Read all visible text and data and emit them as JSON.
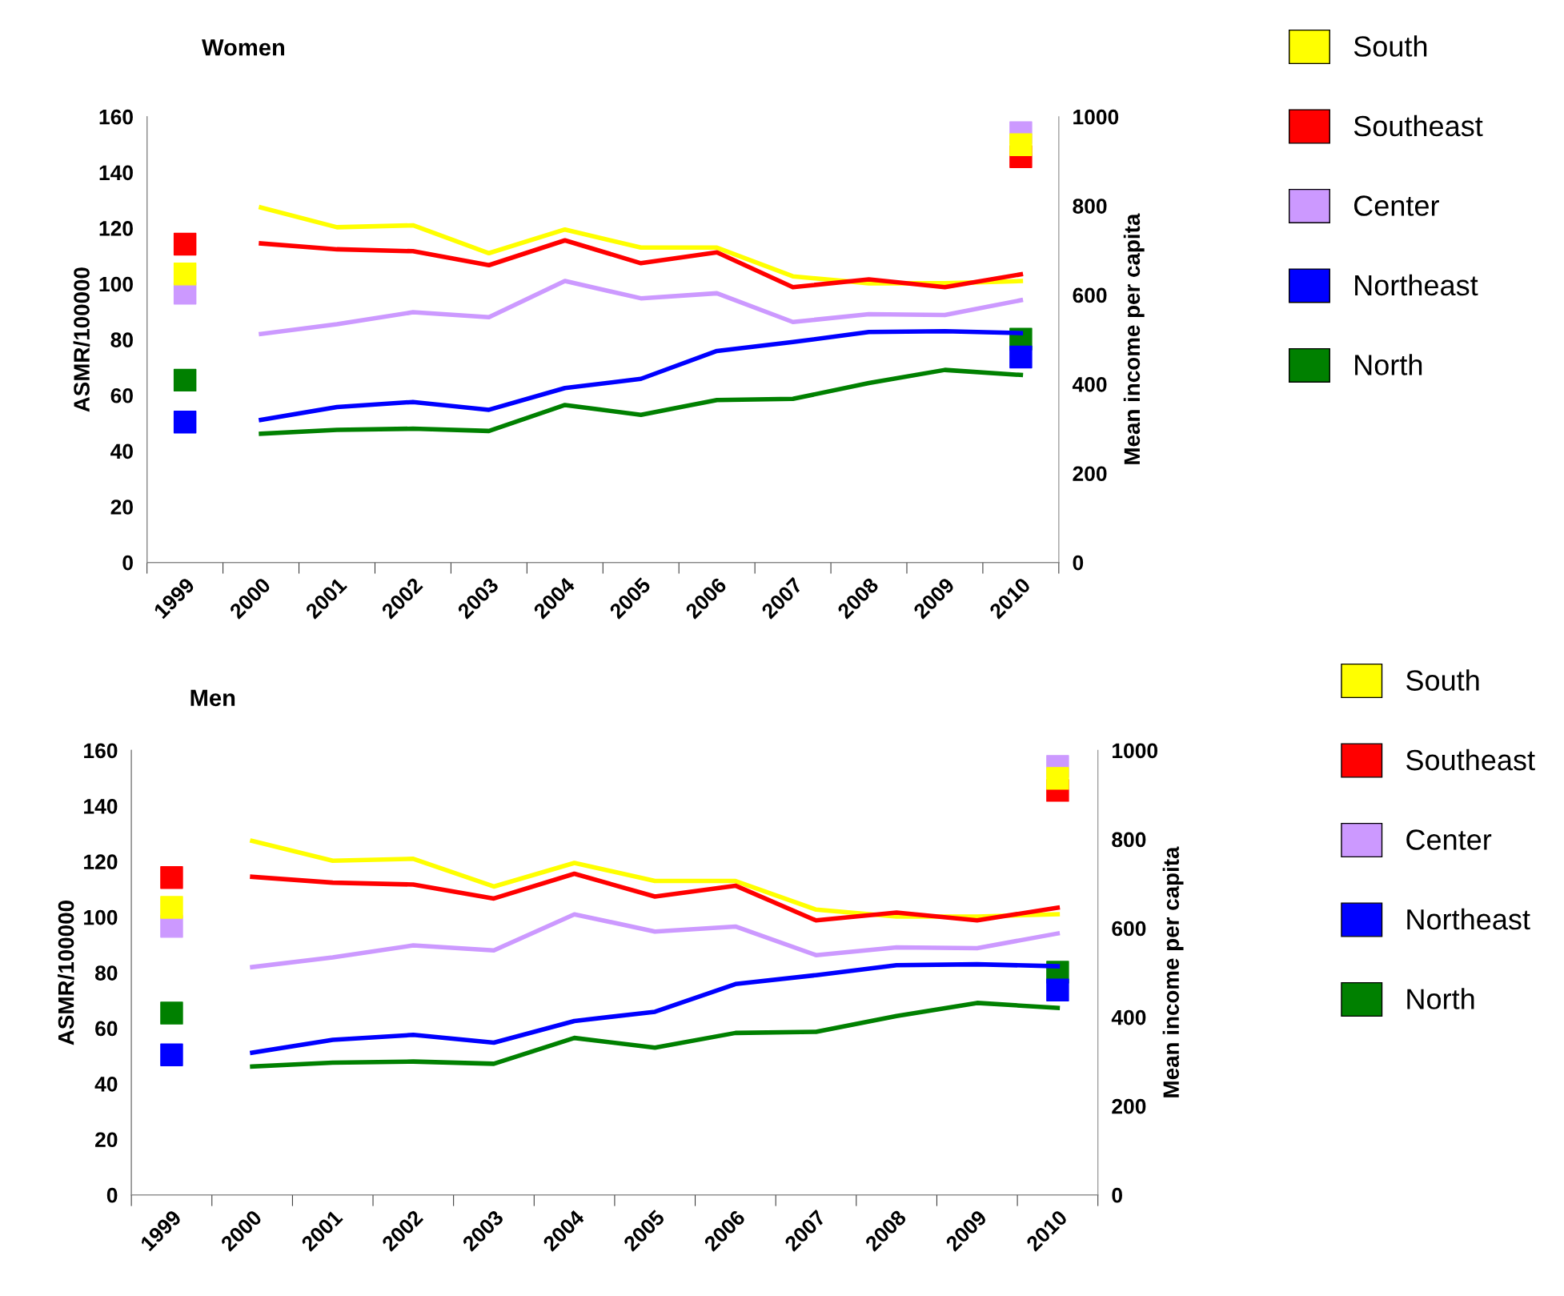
{
  "chart_data": [
    {
      "type": "line",
      "title": "Women",
      "ylabel": "ASMR/100000",
      "y2label": "Mean income per capita",
      "categories": [
        "1999",
        "2000",
        "2001",
        "2002",
        "2003",
        "2004",
        "2005",
        "2006",
        "2007",
        "2008",
        "2009",
        "2010"
      ],
      "ylim": [
        0,
        160
      ],
      "yticks": [
        0,
        20,
        40,
        60,
        80,
        100,
        120,
        140,
        160
      ],
      "y2lim": [
        0,
        1000
      ],
      "y2ticks": [
        0,
        200,
        400,
        600,
        800,
        1000
      ],
      "grid": false,
      "legend": "right",
      "line_style": "solid",
      "series": [
        {
          "name": "South",
          "color": "#ffff00",
          "values": [
            null,
            127.4,
            120.3,
            121,
            111,
            119.5,
            113,
            113,
            102.7,
            100.2,
            100.2,
            101
          ]
        },
        {
          "name": "Southeast",
          "color": "#ff0000",
          "values": [
            null,
            114.5,
            112.4,
            111.7,
            106.7,
            115.6,
            107.4,
            111.3,
            98.8,
            101.6,
            98.8,
            103.4
          ]
        },
        {
          "name": "Center",
          "color": "#cc99ff",
          "values": [
            null,
            82,
            85.5,
            89.8,
            88,
            101,
            94.8,
            96.6,
            86.3,
            89.1,
            88.8,
            94.1
          ]
        },
        {
          "name": "Northeast",
          "color": "#0000ff",
          "values": [
            null,
            51.2,
            55.8,
            57.6,
            54.8,
            62.6,
            65.9,
            75.9,
            79.1,
            82.7,
            83,
            82.3
          ]
        },
        {
          "name": "North",
          "color": "#008000",
          "values": [
            null,
            46.2,
            47.6,
            48,
            47.2,
            56.5,
            53,
            58.3,
            58.7,
            64.4,
            69.1,
            67.3
          ]
        },
        {
          "type": "scatter",
          "axis": "y2",
          "marker": "square",
          "color": "#cc99ff",
          "values": [
            604,
            null,
            null,
            null,
            null,
            null,
            null,
            null,
            null,
            null,
            null,
            964
          ]
        },
        {
          "type": "scatter",
          "axis": "y2",
          "marker": "square",
          "color": "#ff0000",
          "values": [
            714,
            null,
            null,
            null,
            null,
            null,
            null,
            null,
            null,
            null,
            null,
            910
          ]
        },
        {
          "type": "scatter",
          "axis": "y2",
          "marker": "square",
          "color": "#ffff00",
          "values": [
            647,
            null,
            null,
            null,
            null,
            null,
            null,
            null,
            null,
            null,
            null,
            937
          ]
        },
        {
          "type": "scatter",
          "axis": "y2",
          "marker": "square",
          "color": "#008000",
          "values": [
            409,
            null,
            null,
            null,
            null,
            null,
            null,
            null,
            null,
            null,
            null,
            501
          ]
        },
        {
          "type": "scatter",
          "axis": "y2",
          "marker": "square",
          "color": "#0000ff",
          "values": [
            315,
            null,
            null,
            null,
            null,
            null,
            null,
            null,
            null,
            null,
            null,
            461
          ]
        }
      ]
    },
    {
      "type": "line",
      "title": "Men",
      "ylabel": "ASMR/100000",
      "y2label": "Mean income per capita",
      "categories": [
        "1999",
        "2000",
        "2001",
        "2002",
        "2003",
        "2004",
        "2005",
        "2006",
        "2007",
        "2008",
        "2009",
        "2010"
      ],
      "ylim": [
        0,
        160
      ],
      "yticks": [
        0,
        20,
        40,
        60,
        80,
        100,
        120,
        140,
        160
      ],
      "y2lim": [
        0,
        1000
      ],
      "y2ticks": [
        0,
        200,
        400,
        600,
        800,
        1000
      ],
      "grid": false,
      "legend": "right",
      "line_style": "solid",
      "series": [
        {
          "name": "South",
          "color": "#ffff00",
          "values": [
            null,
            127.4,
            120.3,
            121,
            111,
            119.5,
            113,
            113,
            102.7,
            100.2,
            100.2,
            101
          ]
        },
        {
          "name": "Southeast",
          "color": "#ff0000",
          "values": [
            null,
            114.5,
            112.4,
            111.7,
            106.7,
            115.6,
            107.4,
            111.3,
            98.8,
            101.6,
            98.8,
            103.4
          ]
        },
        {
          "name": "Center",
          "color": "#cc99ff",
          "values": [
            null,
            82,
            85.5,
            89.8,
            88,
            101,
            94.8,
            96.6,
            86.3,
            89.1,
            88.8,
            94.1
          ]
        },
        {
          "name": "Northeast",
          "color": "#0000ff",
          "values": [
            null,
            51.2,
            55.8,
            57.6,
            54.8,
            62.6,
            65.9,
            75.9,
            79.1,
            82.7,
            83,
            82.3
          ]
        },
        {
          "name": "North",
          "color": "#008000",
          "values": [
            null,
            46.2,
            47.6,
            48,
            47.2,
            56.5,
            53,
            58.3,
            58.7,
            64.4,
            69.1,
            67.3
          ]
        },
        {
          "type": "scatter",
          "axis": "y2",
          "marker": "square",
          "color": "#cc99ff",
          "values": [
            604,
            null,
            null,
            null,
            null,
            null,
            null,
            null,
            null,
            null,
            null,
            964
          ]
        },
        {
          "type": "scatter",
          "axis": "y2",
          "marker": "square",
          "color": "#ff0000",
          "values": [
            714,
            null,
            null,
            null,
            null,
            null,
            null,
            null,
            null,
            null,
            null,
            910
          ]
        },
        {
          "type": "scatter",
          "axis": "y2",
          "marker": "square",
          "color": "#ffff00",
          "values": [
            647,
            null,
            null,
            null,
            null,
            null,
            null,
            null,
            null,
            null,
            null,
            937
          ]
        },
        {
          "type": "scatter",
          "axis": "y2",
          "marker": "square",
          "color": "#008000",
          "values": [
            409,
            null,
            null,
            null,
            null,
            null,
            null,
            null,
            null,
            null,
            null,
            501
          ]
        },
        {
          "type": "scatter",
          "axis": "y2",
          "marker": "square",
          "color": "#0000ff",
          "values": [
            315,
            null,
            null,
            null,
            null,
            null,
            null,
            null,
            null,
            null,
            null,
            461
          ]
        }
      ]
    }
  ]
}
